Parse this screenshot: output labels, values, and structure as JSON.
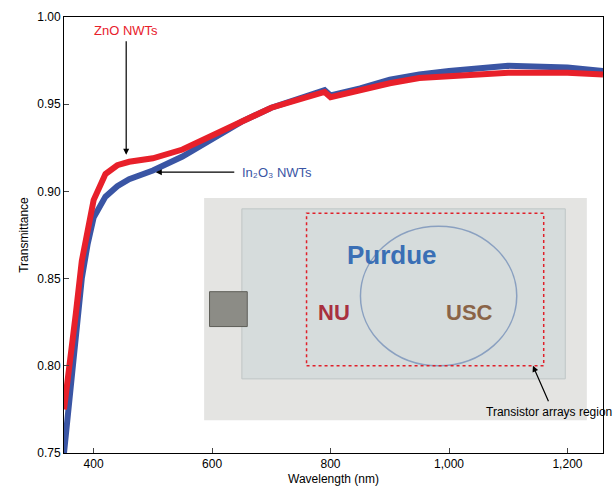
{
  "chart_data": {
    "type": "line",
    "x_label": "Wavelength (nm)",
    "y_label": "Transmittance",
    "x": [
      350,
      360,
      370,
      380,
      390,
      400,
      420,
      440,
      460,
      500,
      550,
      600,
      650,
      700,
      750,
      790,
      800,
      850,
      900,
      950,
      1000,
      1100,
      1200,
      1260
    ],
    "series": [
      {
        "name": "In₂O₃ NWTs",
        "color": "#3a55a4",
        "values": [
          0.75,
          0.785,
          0.82,
          0.85,
          0.87,
          0.885,
          0.897,
          0.903,
          0.907,
          0.912,
          0.92,
          0.93,
          0.94,
          0.948,
          0.954,
          0.958,
          0.955,
          0.959,
          0.964,
          0.967,
          0.969,
          0.972,
          0.971,
          0.969
        ]
      },
      {
        "name": "ZnO NWTs",
        "color": "#e8202a",
        "values": [
          0.775,
          0.8,
          0.83,
          0.86,
          0.88,
          0.895,
          0.91,
          0.915,
          0.917,
          0.919,
          0.924,
          0.932,
          0.94,
          0.948,
          0.953,
          0.957,
          0.954,
          0.958,
          0.962,
          0.965,
          0.966,
          0.968,
          0.968,
          0.967
        ]
      }
    ],
    "xlim": [
      350,
      1260
    ],
    "xticks": [
      400,
      600,
      800,
      {
        "value": 1000,
        "label": "1,000"
      },
      {
        "value": 1200,
        "label": "1,200"
      }
    ],
    "ylim": [
      0.75,
      1.0
    ],
    "yticks": [
      0.75,
      {
        "value": 0.8,
        "label": "0.80"
      },
      0.85,
      {
        "value": 0.9,
        "label": "0.90"
      },
      0.95,
      {
        "value": 1.0,
        "label": "1.00"
      }
    ],
    "grid": false,
    "inset": {
      "texts": [
        {
          "text": "Purdue",
          "color": "#3a6fb5"
        },
        {
          "text": "NU",
          "color": "#a8303f"
        },
        {
          "text": "USC",
          "color": "#8a6448"
        }
      ],
      "label": "Transistor arrays region"
    }
  }
}
